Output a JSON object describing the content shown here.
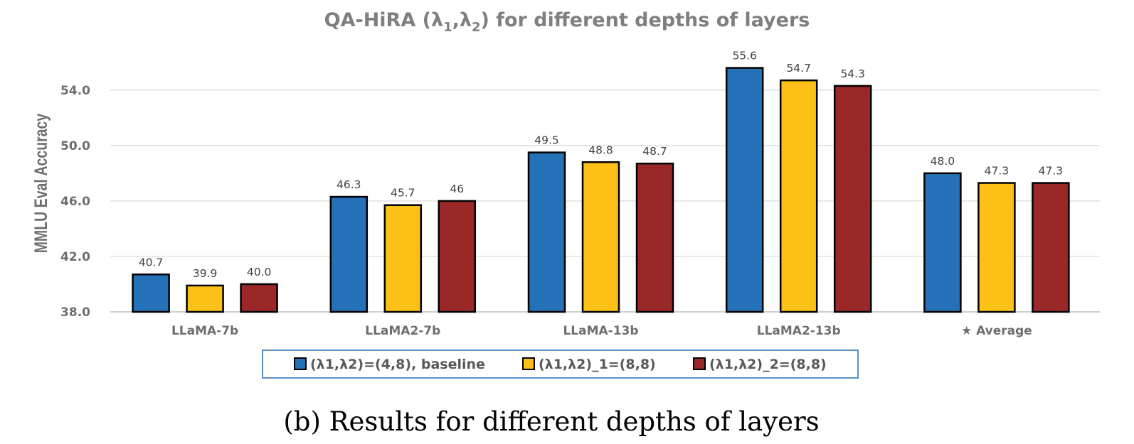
{
  "caption": "(b) Results for different depths of layers",
  "chart_data": {
    "type": "bar",
    "title": "QA-HiRA (λ₁,λ₂) for different depths of layers",
    "title_parts": {
      "main": "QA-HiRA (λ",
      "sub1": "1",
      "mid": ",λ",
      "sub2": "2",
      "end": ") for different depths of layers"
    },
    "xlabel": "",
    "ylabel": "MMLU Eval Accuracy",
    "ylim": [
      38.0,
      56.5
    ],
    "yticks": [
      38.0,
      42.0,
      46.0,
      50.0,
      54.0
    ],
    "ytick_labels": [
      "38.0",
      "42.0",
      "46.0",
      "50.0",
      "54.0"
    ],
    "grid": true,
    "legend_position": "bottom-center",
    "categories": [
      "LLaMA-7b",
      "LLaMA2-7b",
      "LLaMA-13b",
      "LLaMA2-13b",
      "★ Average"
    ],
    "series": [
      {
        "name": "(λ1,λ2)=(4,8), baseline",
        "color": "#2571b7",
        "values": [
          40.7,
          46.3,
          49.5,
          55.6,
          48.0
        ],
        "labels": [
          "40.7",
          "46.3",
          "49.5",
          "55.6",
          "48.0"
        ]
      },
      {
        "name": "(λ1,λ2)_1=(8,8)",
        "color": "#fcc016",
        "values": [
          39.9,
          45.7,
          48.8,
          54.7,
          47.3
        ],
        "labels": [
          "39.9",
          "45.7",
          "48.8",
          "54.7",
          "47.3"
        ]
      },
      {
        "name": "(λ1,λ2)_2=(8,8)",
        "color": "#9a2828",
        "values": [
          40.0,
          46.0,
          48.7,
          54.3,
          47.3
        ],
        "labels": [
          "40.0",
          "46",
          "48.7",
          "54.3",
          "47.3"
        ]
      }
    ]
  }
}
